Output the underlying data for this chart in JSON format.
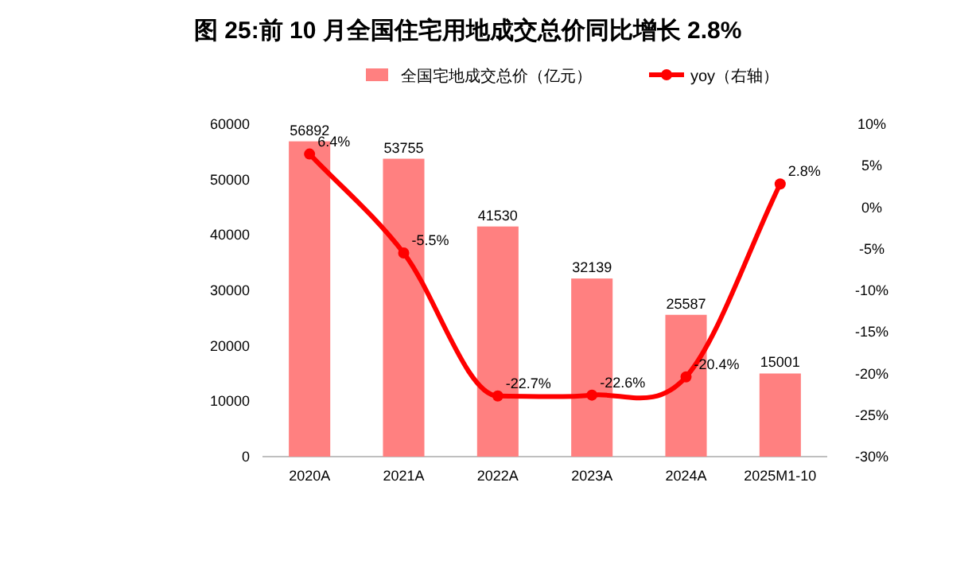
{
  "chart_data": {
    "type": "bar",
    "title": "图 25:前 10 月全国住宅用地成交总价同比增长 2.8%",
    "categories": [
      "2020A",
      "2021A",
      "2022A",
      "2023A",
      "2024A",
      "2025M1-10"
    ],
    "series": [
      {
        "name": "全国宅地成交总价（亿元）",
        "color": "#ff8080",
        "values": [
          56892,
          53755,
          41530,
          32139,
          25587,
          15001
        ],
        "value_labels": [
          "56892",
          "53755",
          "41530",
          "32139",
          "25587",
          "15001"
        ]
      },
      {
        "name": "yoy（右轴）",
        "type": "line",
        "axis": "y2",
        "color": "#ff0000",
        "marker": "circle",
        "values": [
          6.4,
          -5.5,
          -22.7,
          -22.6,
          -20.4,
          2.8
        ],
        "value_labels": [
          "6.4%",
          "-5.5%",
          "-22.7%",
          "-22.6%",
          "-20.4%",
          "2.8%"
        ]
      }
    ],
    "ylim": [
      0,
      60000
    ],
    "yticks": [
      0,
      10000,
      20000,
      30000,
      40000,
      50000,
      60000
    ],
    "y2lim": [
      -30,
      10
    ],
    "y2ticks": [
      {
        "value": -30,
        "label": "-30%"
      },
      {
        "value": -25,
        "label": "-25%"
      },
      {
        "value": -20,
        "label": "-20%"
      },
      {
        "value": -15,
        "label": "-15%"
      },
      {
        "value": -10,
        "label": "-10%"
      },
      {
        "value": -5,
        "label": "-5%"
      },
      {
        "value": 0,
        "label": "0%"
      },
      {
        "value": 5,
        "label": "5%"
      },
      {
        "value": 10,
        "label": "10%"
      }
    ],
    "legend": "top",
    "grid": false
  }
}
